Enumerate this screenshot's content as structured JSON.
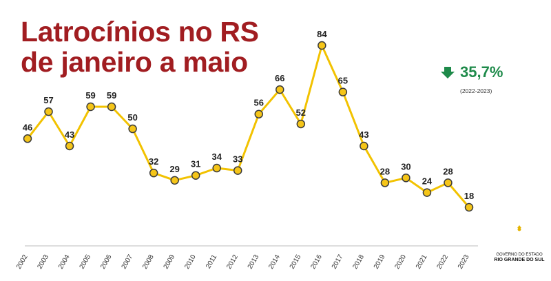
{
  "title_line1": "Latrocínios no RS",
  "title_line2": "de janeiro a maio",
  "change": {
    "value": "35,7%",
    "period": "(2022-2023)",
    "direction": "down",
    "color": "#1e8a4a",
    "icon": "arrow-down-icon"
  },
  "colors": {
    "title": "#a11d21",
    "line": "#f2c200",
    "marker_fill": "#f5c518",
    "marker_stroke": "#3a3a3a"
  },
  "logo": {
    "line1": "GOVERNO DO ESTADO",
    "line2": "RIO GRANDE DO SUL",
    "icon": "state-coat-of-arms-icon"
  },
  "chart_data": {
    "type": "line",
    "x": [
      "2002",
      "2003",
      "2004",
      "2005",
      "2006",
      "2007",
      "2008",
      "2009",
      "2010",
      "2011",
      "2012",
      "2013",
      "2014",
      "2015",
      "2016",
      "2017",
      "2018",
      "2019",
      "2020",
      "2021",
      "2022",
      "2023"
    ],
    "values": [
      46,
      57,
      43,
      59,
      59,
      50,
      32,
      29,
      31,
      34,
      33,
      56,
      66,
      52,
      84,
      65,
      43,
      28,
      30,
      24,
      28,
      18
    ],
    "title": "Latrocínios no RS de janeiro a maio",
    "xlabel": "",
    "ylabel": "",
    "grid": false,
    "data_labels": true
  }
}
